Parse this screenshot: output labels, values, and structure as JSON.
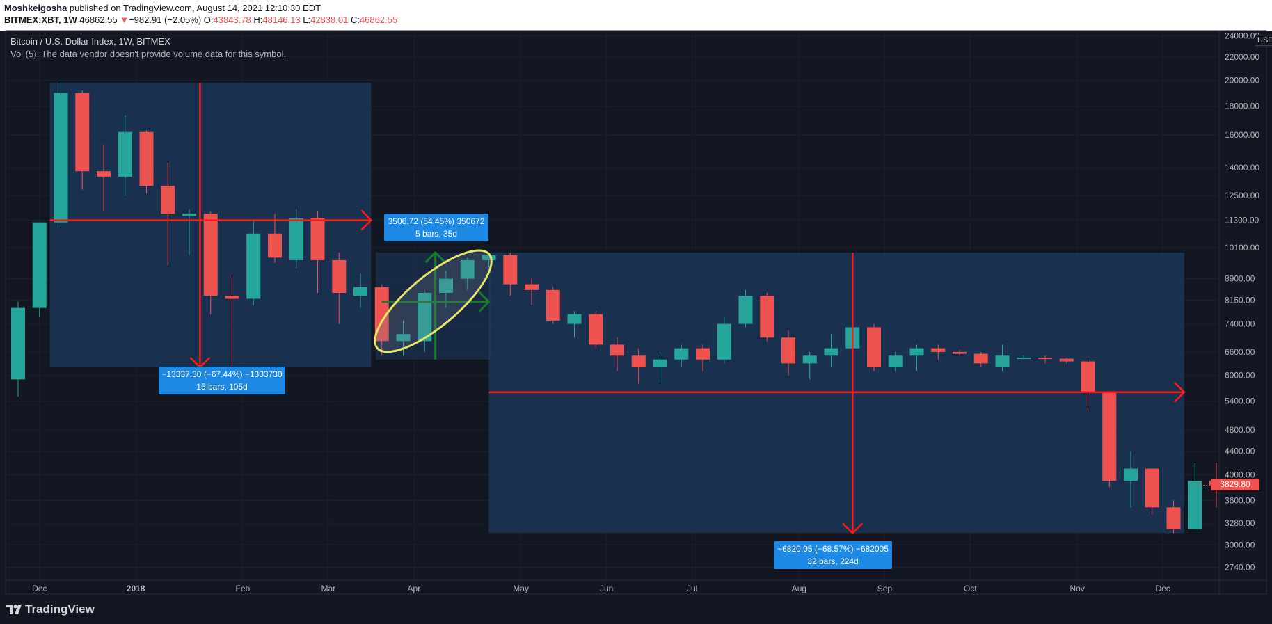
{
  "header": {
    "author": "Moshkelgosha",
    "published_text": " published on TradingView.com, August 14, 2021 12:10:30 EDT",
    "symbol": "BITMEX:XBT, 1W",
    "last": "46862.55",
    "change_arrow": "▼",
    "change": "−982.91 (−2.05%)",
    "o_label": "O:",
    "o_value": "43843.78",
    "h_label": "H:",
    "h_value": "48146.13",
    "l_label": "L:",
    "l_value": "42838.01",
    "c_label": "C:",
    "c_value": "46862.55"
  },
  "chart_info": {
    "title": "Bitcoin / U.S. Dollar Index, 1W, BITMEX",
    "volume_note": "Vol (5): The data vendor doesn't provide volume data for this symbol."
  },
  "axis": {
    "currency": "USD",
    "current_price": "3829.80"
  },
  "footer": {
    "brand": "TradingView"
  },
  "colors": {
    "up": "#26a69a",
    "down": "#ef5350",
    "zone": "#1e3a5f",
    "arrow": "#ff1a1a",
    "label_bg": "#1e88e5",
    "ellipse": "#e8e36a",
    "green_arrow": "#1b7a2a",
    "background": "#131722"
  },
  "annotations": {
    "drop1_line1": "−13337.30 (−67.44%) −1333730",
    "drop1_line2": "15 bars, 105d",
    "rise_line1": "3506.72 (54.45%) 350672",
    "rise_line2": "5 bars, 35d",
    "drop2_line1": "−6820.05 (−68.57%) −682005",
    "drop2_line2": "32 bars, 224d"
  },
  "chart_data": {
    "type": "candlestick",
    "title": "Bitcoin / U.S. Dollar Index, 1W, BITMEX",
    "y_scale": "log",
    "ylim": [
      2600,
      24500
    ],
    "y_ticks": [
      24000,
      22000,
      20000,
      18000,
      16000,
      14000,
      12500,
      11300,
      10100,
      8900,
      8150,
      7400,
      6600,
      6000,
      5400,
      4800,
      4400,
      4000,
      3600,
      3280,
      3000,
      2740
    ],
    "y_tick_labels": [
      "24000.00",
      "22000.00",
      "20000.00",
      "18000.00",
      "16000.00",
      "14000.00",
      "12500.00",
      "11300.00",
      "10100.00",
      "8900.00",
      "8150.00",
      "7400.00",
      "6600.00",
      "6000.00",
      "5400.00",
      "4800.00",
      "4400.00",
      "4000.00",
      "3600.00",
      "3280.00",
      "3000.00",
      "2740.00"
    ],
    "x_labels": [
      {
        "label": "Dec",
        "index": 1
      },
      {
        "label": "2018",
        "index": 5.5
      },
      {
        "label": "Feb",
        "index": 10.5
      },
      {
        "label": "Mar",
        "index": 14.5
      },
      {
        "label": "Apr",
        "index": 18.5
      },
      {
        "label": "May",
        "index": 23.5
      },
      {
        "label": "Jun",
        "index": 27.5
      },
      {
        "label": "Jul",
        "index": 31.5
      },
      {
        "label": "Aug",
        "index": 36.5
      },
      {
        "label": "Sep",
        "index": 40.5
      },
      {
        "label": "Oct",
        "index": 44.5
      },
      {
        "label": "Nov",
        "index": 49.5
      },
      {
        "label": "Dec",
        "index": 53.5
      }
    ],
    "candles": [
      {
        "o": 5900,
        "h": 8100,
        "l": 5500,
        "c": 7900
      },
      {
        "o": 7900,
        "h": 11200,
        "l": 7600,
        "c": 11200
      },
      {
        "o": 11200,
        "h": 19800,
        "l": 11000,
        "c": 19000
      },
      {
        "o": 19000,
        "h": 19200,
        "l": 12800,
        "c": 13800
      },
      {
        "o": 13800,
        "h": 15400,
        "l": 11700,
        "c": 13500
      },
      {
        "o": 13500,
        "h": 17300,
        "l": 12500,
        "c": 16200
      },
      {
        "o": 16200,
        "h": 16300,
        "l": 12600,
        "c": 13000
      },
      {
        "o": 13000,
        "h": 14300,
        "l": 9400,
        "c": 11600
      },
      {
        "o": 11500,
        "h": 11800,
        "l": 9800,
        "c": 11600
      },
      {
        "o": 11600,
        "h": 11700,
        "l": 7700,
        "c": 8300
      },
      {
        "o": 8300,
        "h": 9000,
        "l": 6000,
        "c": 8200
      },
      {
        "o": 8200,
        "h": 11300,
        "l": 8000,
        "c": 10700
      },
      {
        "o": 10700,
        "h": 11600,
        "l": 9500,
        "c": 9700
      },
      {
        "o": 9600,
        "h": 11800,
        "l": 9300,
        "c": 11400
      },
      {
        "o": 11400,
        "h": 11700,
        "l": 8400,
        "c": 9600
      },
      {
        "o": 9600,
        "h": 9900,
        "l": 7400,
        "c": 8400
      },
      {
        "o": 8300,
        "h": 9100,
        "l": 7900,
        "c": 8600
      },
      {
        "o": 8600,
        "h": 8700,
        "l": 6500,
        "c": 6900
      },
      {
        "o": 6900,
        "h": 7500,
        "l": 6500,
        "c": 7100
      },
      {
        "o": 6900,
        "h": 8500,
        "l": 6600,
        "c": 8400
      },
      {
        "o": 8400,
        "h": 9200,
        "l": 7900,
        "c": 8900
      },
      {
        "o": 8900,
        "h": 9700,
        "l": 8500,
        "c": 9600
      },
      {
        "o": 9600,
        "h": 9900,
        "l": 9300,
        "c": 9800
      },
      {
        "o": 9800,
        "h": 9900,
        "l": 8300,
        "c": 8700
      },
      {
        "o": 8700,
        "h": 8900,
        "l": 8000,
        "c": 8500
      },
      {
        "o": 8500,
        "h": 8600,
        "l": 7400,
        "c": 7500
      },
      {
        "o": 7400,
        "h": 7800,
        "l": 7000,
        "c": 7700
      },
      {
        "o": 7700,
        "h": 7800,
        "l": 6700,
        "c": 6800
      },
      {
        "o": 6800,
        "h": 7000,
        "l": 6100,
        "c": 6500
      },
      {
        "o": 6500,
        "h": 6700,
        "l": 5800,
        "c": 6200
      },
      {
        "o": 6200,
        "h": 6600,
        "l": 5800,
        "c": 6400
      },
      {
        "o": 6400,
        "h": 6800,
        "l": 6200,
        "c": 6700
      },
      {
        "o": 6700,
        "h": 6800,
        "l": 6100,
        "c": 6400
      },
      {
        "o": 6400,
        "h": 7600,
        "l": 6300,
        "c": 7400
      },
      {
        "o": 7400,
        "h": 8500,
        "l": 7300,
        "c": 8300
      },
      {
        "o": 8300,
        "h": 8400,
        "l": 6900,
        "c": 7000
      },
      {
        "o": 7000,
        "h": 7200,
        "l": 6000,
        "c": 6300
      },
      {
        "o": 6300,
        "h": 6600,
        "l": 5900,
        "c": 6500
      },
      {
        "o": 6500,
        "h": 7100,
        "l": 6200,
        "c": 6700
      },
      {
        "o": 6700,
        "h": 7400,
        "l": 6600,
        "c": 7300
      },
      {
        "o": 7300,
        "h": 7400,
        "l": 6100,
        "c": 6200
      },
      {
        "o": 6200,
        "h": 6600,
        "l": 6100,
        "c": 6500
      },
      {
        "o": 6500,
        "h": 6800,
        "l": 6100,
        "c": 6700
      },
      {
        "o": 6700,
        "h": 6800,
        "l": 6400,
        "c": 6600
      },
      {
        "o": 6600,
        "h": 6650,
        "l": 6500,
        "c": 6550
      },
      {
        "o": 6550,
        "h": 6600,
        "l": 6200,
        "c": 6300
      },
      {
        "o": 6200,
        "h": 6800,
        "l": 6100,
        "c": 6500
      },
      {
        "o": 6450,
        "h": 6500,
        "l": 6400,
        "c": 6450
      },
      {
        "o": 6450,
        "h": 6500,
        "l": 6300,
        "c": 6420
      },
      {
        "o": 6420,
        "h": 6450,
        "l": 6300,
        "c": 6350
      },
      {
        "o": 6350,
        "h": 6400,
        "l": 5200,
        "c": 5600
      },
      {
        "o": 5600,
        "h": 5600,
        "l": 3800,
        "c": 3900
      },
      {
        "o": 3900,
        "h": 4400,
        "l": 3500,
        "c": 4100
      },
      {
        "o": 4100,
        "h": 4100,
        "l": 3400,
        "c": 3500
      },
      {
        "o": 3500,
        "h": 3600,
        "l": 3150,
        "c": 3200
      },
      {
        "o": 3200,
        "h": 4200,
        "l": 3200,
        "c": 3900
      },
      {
        "o": 3900,
        "h": 4200,
        "l": 3500,
        "c": 3830
      }
    ]
  }
}
